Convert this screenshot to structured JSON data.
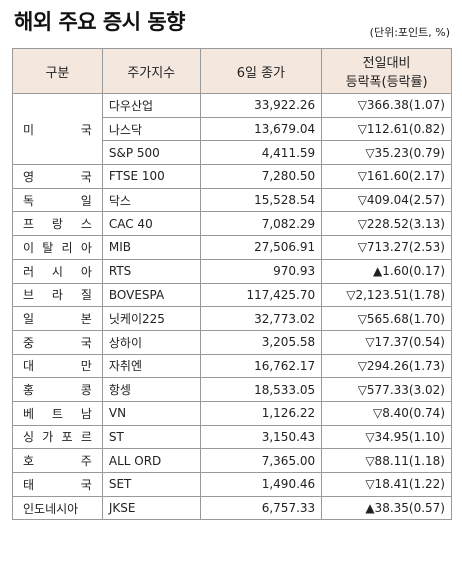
{
  "title": "해외 주요 증시 동향",
  "unit": "(단위:포인트, %)",
  "table": {
    "header": [
      "구분",
      "주가지수",
      "6일 종가",
      [
        "전일대비",
        "등락폭(등락률)"
      ]
    ],
    "groups": [
      {
        "country": "미 국",
        "rows": [
          [
            "다우산업",
            "33,922.26",
            "▽366.38(1.07)"
          ],
          [
            "나스닥",
            "13,679.04",
            "▽112.61(0.82)"
          ],
          [
            "S&P 500",
            "4,411.59",
            "▽35.23(0.79)"
          ]
        ]
      },
      {
        "country": "영 국",
        "rows": [
          [
            "FTSE 100",
            "7,280.50",
            "▽161.60(2.17)"
          ]
        ]
      },
      {
        "country": "독 일",
        "rows": [
          [
            "닥스",
            "15,528.54",
            "▽409.04(2.57)"
          ]
        ]
      },
      {
        "country": "프 랑 스",
        "rows": [
          [
            "CAC 40",
            "7,082.29",
            "▽228.52(3.13)"
          ]
        ]
      },
      {
        "country": "이 탈 리 아",
        "rows": [
          [
            "MIB",
            "27,506.91",
            "▽713.27(2.53)"
          ]
        ]
      },
      {
        "country": "러 시 아",
        "rows": [
          [
            "RTS",
            "970.93",
            "▲1.60(0.17)"
          ]
        ]
      },
      {
        "country": "브 라 질",
        "rows": [
          [
            "BOVESPA",
            "117,425.70",
            "▽2,123.51(1.78)"
          ]
        ]
      },
      {
        "country": "일 본",
        "rows": [
          [
            "닛케이225",
            "32,773.02",
            "▽565.68(1.70)"
          ]
        ]
      },
      {
        "country": "중 국",
        "rows": [
          [
            "상하이",
            "3,205.58",
            "▽17.37(0.54)"
          ]
        ]
      },
      {
        "country": "대 만",
        "rows": [
          [
            "자취엔",
            "16,762.17",
            "▽294.26(1.73)"
          ]
        ]
      },
      {
        "country": "홍 콩",
        "rows": [
          [
            "항셍",
            "18,533.05",
            "▽577.33(3.02)"
          ]
        ]
      },
      {
        "country": "베 트 남",
        "rows": [
          [
            "VN",
            "1,126.22",
            "▽8.40(0.74)"
          ]
        ]
      },
      {
        "country": "싱 가 포 르",
        "rows": [
          [
            "ST",
            "3,150.43",
            "▽34.95(1.10)"
          ]
        ]
      },
      {
        "country": "호 주",
        "rows": [
          [
            "ALL ORD",
            "7,365.00",
            "▽88.11(1.18)"
          ]
        ]
      },
      {
        "country": "태 국",
        "rows": [
          [
            "SET",
            "1,490.46",
            "▽18.41(1.22)"
          ]
        ]
      },
      {
        "country": "인도네시아",
        "rows": [
          [
            "JKSE",
            "6,757.33",
            "▲38.35(0.57)"
          ]
        ]
      }
    ]
  }
}
